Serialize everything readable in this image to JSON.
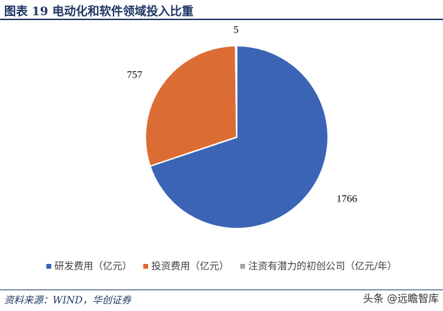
{
  "header": {
    "title": "图表 19  电动化和软件领域投入比重"
  },
  "chart_data": {
    "type": "pie",
    "title": "",
    "slices": [
      {
        "label": "研发费用（亿元）",
        "value": 1766,
        "color": "#3b64b4"
      },
      {
        "label": "投资费用（亿元）",
        "value": 757,
        "color": "#db6d34"
      },
      {
        "label": "注资有潜力的初创公司（亿元/年）",
        "value": 5,
        "color": "#a5a5a5"
      }
    ],
    "legend_position": "bottom"
  },
  "footer": {
    "source": "资料来源：WIND，华创证券",
    "watermark": "头条 @远瞻智库"
  }
}
